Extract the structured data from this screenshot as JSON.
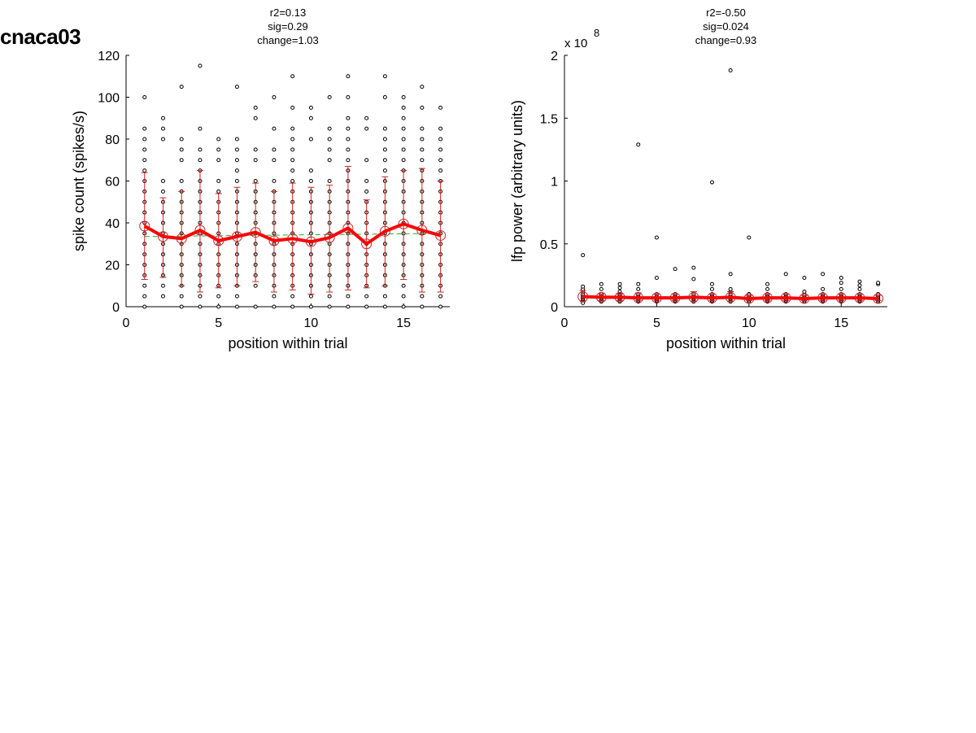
{
  "figure": {
    "title": "cnaca03"
  },
  "chart_data": [
    {
      "type": "scatter",
      "title_lines": [
        "r2=0.13",
        "sig=0.29",
        "change=1.03"
      ],
      "xlabel": "position within trial",
      "ylabel": "spike count (spikes/s)",
      "xlim": [
        0,
        17.5
      ],
      "ylim": [
        0,
        120
      ],
      "x_ticks": [
        0,
        5,
        10,
        15
      ],
      "x_tick_labels": [
        "0",
        "5",
        "10",
        "15"
      ],
      "y_ticks": [
        0,
        20,
        40,
        60,
        80,
        100,
        120
      ],
      "y_tick_labels": [
        "0",
        "20",
        "40",
        "60",
        "80",
        "100",
        "120"
      ],
      "exponent_label": "",
      "grid": false,
      "colors": {
        "points": "#000000",
        "mean": "#ff0000",
        "errorbar": "#cc2222",
        "mean_marker": "#cc2222",
        "fit": "#22aa22"
      },
      "points": [
        {
          "x": 1,
          "y": [
            0,
            5,
            10,
            15,
            20,
            25,
            30,
            35,
            40,
            45,
            50,
            55,
            60,
            65,
            70,
            75,
            80,
            85,
            100
          ]
        },
        {
          "x": 2,
          "y": [
            5,
            10,
            15,
            20,
            25,
            30,
            35,
            40,
            45,
            50,
            55,
            60,
            80,
            85,
            90
          ]
        },
        {
          "x": 3,
          "y": [
            0,
            5,
            10,
            15,
            20,
            25,
            30,
            35,
            40,
            45,
            50,
            55,
            60,
            70,
            75,
            80,
            105
          ]
        },
        {
          "x": 4,
          "y": [
            0,
            5,
            10,
            15,
            20,
            25,
            30,
            35,
            40,
            45,
            50,
            55,
            60,
            65,
            70,
            75,
            85,
            115
          ]
        },
        {
          "x": 5,
          "y": [
            0,
            5,
            10,
            15,
            20,
            25,
            30,
            35,
            40,
            45,
            50,
            55,
            60,
            70,
            75,
            80
          ]
        },
        {
          "x": 6,
          "y": [
            0,
            5,
            10,
            15,
            20,
            25,
            30,
            35,
            40,
            45,
            50,
            55,
            60,
            65,
            70,
            75,
            80,
            105
          ]
        },
        {
          "x": 7,
          "y": [
            0,
            10,
            15,
            20,
            25,
            30,
            35,
            40,
            45,
            50,
            55,
            60,
            70,
            75,
            90,
            95
          ]
        },
        {
          "x": 8,
          "y": [
            0,
            5,
            10,
            15,
            20,
            25,
            30,
            35,
            40,
            45,
            50,
            55,
            60,
            70,
            75,
            85,
            100
          ]
        },
        {
          "x": 9,
          "y": [
            0,
            5,
            10,
            15,
            20,
            25,
            30,
            35,
            40,
            45,
            50,
            55,
            60,
            65,
            70,
            75,
            80,
            85,
            95,
            110
          ]
        },
        {
          "x": 10,
          "y": [
            0,
            5,
            10,
            15,
            20,
            25,
            30,
            35,
            40,
            45,
            50,
            55,
            60,
            65,
            80,
            90,
            95
          ]
        },
        {
          "x": 11,
          "y": [
            0,
            5,
            10,
            15,
            20,
            25,
            30,
            35,
            40,
            45,
            50,
            55,
            60,
            70,
            75,
            80,
            85,
            100
          ]
        },
        {
          "x": 12,
          "y": [
            0,
            5,
            10,
            15,
            20,
            25,
            30,
            35,
            40,
            45,
            50,
            55,
            60,
            65,
            70,
            75,
            80,
            85,
            90,
            100,
            110
          ]
        },
        {
          "x": 13,
          "y": [
            0,
            5,
            10,
            15,
            20,
            25,
            30,
            35,
            40,
            45,
            50,
            55,
            60,
            70,
            85,
            90
          ]
        },
        {
          "x": 14,
          "y": [
            0,
            5,
            10,
            15,
            20,
            25,
            30,
            35,
            40,
            45,
            50,
            55,
            60,
            65,
            70,
            75,
            80,
            85,
            100,
            110
          ]
        },
        {
          "x": 15,
          "y": [
            0,
            5,
            10,
            15,
            20,
            25,
            30,
            35,
            40,
            45,
            50,
            55,
            60,
            65,
            70,
            75,
            80,
            85,
            90,
            95,
            100
          ]
        },
        {
          "x": 16,
          "y": [
            0,
            5,
            10,
            15,
            20,
            25,
            30,
            35,
            40,
            45,
            50,
            55,
            60,
            65,
            70,
            75,
            80,
            85,
            95,
            105
          ]
        },
        {
          "x": 17,
          "y": [
            0,
            5,
            10,
            15,
            20,
            25,
            30,
            35,
            40,
            45,
            50,
            55,
            60,
            65,
            70,
            75,
            80,
            85,
            95
          ]
        }
      ],
      "mean": {
        "x": [
          1,
          2,
          3,
          4,
          5,
          6,
          7,
          8,
          9,
          10,
          11,
          12,
          13,
          14,
          15,
          16,
          17
        ],
        "y": [
          38.5,
          33.5,
          32.5,
          36.5,
          31.5,
          33.5,
          35.5,
          31.5,
          32.5,
          31,
          33,
          37.5,
          30,
          36,
          39.5,
          36.5,
          34
        ],
        "err_low": [
          13,
          14,
          10,
          7,
          9,
          10,
          12,
          7,
          8,
          6,
          7,
          8,
          9,
          10,
          13,
          7,
          7
        ],
        "err_high": [
          64,
          52,
          55,
          65,
          54,
          57,
          59,
          55,
          59,
          57,
          58,
          67,
          51,
          62,
          65,
          66,
          60
        ]
      },
      "fit_line": {
        "x": [
          1,
          17
        ],
        "y": [
          33.5,
          35
        ]
      }
    },
    {
      "type": "scatter",
      "title_lines": [
        "r2=-0.50",
        "sig=0.024",
        "change=0.93"
      ],
      "xlabel": "position within trial",
      "ylabel": "lfp power (arbitrary units)",
      "xlim": [
        0,
        17.5
      ],
      "ylim": [
        0,
        2
      ],
      "x_ticks": [
        0,
        5,
        10,
        15
      ],
      "x_tick_labels": [
        "0",
        "5",
        "10",
        "15"
      ],
      "y_ticks": [
        0,
        0.5,
        1,
        1.5,
        2
      ],
      "y_tick_labels": [
        "0",
        "0.5",
        "1",
        "1.5",
        "2"
      ],
      "exponent_label": "x 10",
      "exponent_power": "8",
      "grid": false,
      "colors": {
        "points": "#000000",
        "mean": "#ff0000",
        "errorbar": "#cc2222",
        "mean_marker": "#cc2222",
        "fit": "#22aa22"
      },
      "points": [
        {
          "x": 1,
          "y": [
            0.03,
            0.05,
            0.06,
            0.07,
            0.08,
            0.09,
            0.1,
            0.12,
            0.14,
            0.16,
            0.41
          ]
        },
        {
          "x": 2,
          "y": [
            0.04,
            0.05,
            0.06,
            0.07,
            0.08,
            0.09,
            0.1,
            0.14,
            0.18
          ]
        },
        {
          "x": 3,
          "y": [
            0.04,
            0.05,
            0.06,
            0.07,
            0.08,
            0.09,
            0.1,
            0.12,
            0.15,
            0.18
          ]
        },
        {
          "x": 4,
          "y": [
            0.04,
            0.05,
            0.06,
            0.07,
            0.08,
            0.09,
            0.1,
            0.14,
            0.18,
            1.29
          ]
        },
        {
          "x": 5,
          "y": [
            0.04,
            0.05,
            0.06,
            0.07,
            0.08,
            0.1,
            0.23,
            0.55
          ]
        },
        {
          "x": 6,
          "y": [
            0.04,
            0.05,
            0.06,
            0.07,
            0.08,
            0.09,
            0.1,
            0.3
          ]
        },
        {
          "x": 7,
          "y": [
            0.04,
            0.05,
            0.06,
            0.07,
            0.08,
            0.09,
            0.1,
            0.22,
            0.31
          ]
        },
        {
          "x": 8,
          "y": [
            0.04,
            0.05,
            0.06,
            0.07,
            0.08,
            0.09,
            0.1,
            0.14,
            0.18,
            0.99
          ]
        },
        {
          "x": 9,
          "y": [
            0.04,
            0.05,
            0.06,
            0.07,
            0.08,
            0.09,
            0.1,
            0.12,
            0.14,
            0.26,
            1.88
          ]
        },
        {
          "x": 10,
          "y": [
            0.04,
            0.05,
            0.06,
            0.07,
            0.08,
            0.09,
            0.1,
            0.55
          ]
        },
        {
          "x": 11,
          "y": [
            0.04,
            0.05,
            0.06,
            0.07,
            0.08,
            0.09,
            0.1,
            0.14,
            0.18
          ]
        },
        {
          "x": 12,
          "y": [
            0.04,
            0.05,
            0.06,
            0.07,
            0.08,
            0.09,
            0.1,
            0.26
          ]
        },
        {
          "x": 13,
          "y": [
            0.04,
            0.05,
            0.06,
            0.07,
            0.08,
            0.09,
            0.1,
            0.12,
            0.23
          ]
        },
        {
          "x": 14,
          "y": [
            0.04,
            0.05,
            0.06,
            0.07,
            0.08,
            0.09,
            0.1,
            0.14,
            0.26
          ]
        },
        {
          "x": 15,
          "y": [
            0.04,
            0.05,
            0.06,
            0.07,
            0.08,
            0.09,
            0.1,
            0.14,
            0.19,
            0.23
          ]
        },
        {
          "x": 16,
          "y": [
            0.04,
            0.05,
            0.06,
            0.07,
            0.08,
            0.09,
            0.1,
            0.14,
            0.17,
            0.2
          ]
        },
        {
          "x": 17,
          "y": [
            0.04,
            0.05,
            0.06,
            0.07,
            0.08,
            0.09,
            0.1,
            0.18,
            0.19
          ]
        }
      ],
      "mean": {
        "x": [
          1,
          2,
          3,
          4,
          5,
          6,
          7,
          8,
          9,
          10,
          11,
          12,
          13,
          14,
          15,
          16,
          17
        ],
        "y": [
          0.08,
          0.075,
          0.075,
          0.07,
          0.07,
          0.07,
          0.075,
          0.07,
          0.075,
          0.065,
          0.07,
          0.07,
          0.065,
          0.07,
          0.07,
          0.07,
          0.065
        ],
        "err_low": [
          0.04,
          0.05,
          0.05,
          0.05,
          0.05,
          0.05,
          0.04,
          0.05,
          0.04,
          0.05,
          0.05,
          0.05,
          0.05,
          0.05,
          0.05,
          0.05,
          0.05
        ],
        "err_high": [
          0.13,
          0.1,
          0.1,
          0.11,
          0.1,
          0.1,
          0.12,
          0.1,
          0.12,
          0.09,
          0.1,
          0.1,
          0.09,
          0.1,
          0.1,
          0.1,
          0.09
        ]
      },
      "fit_line": {
        "x": [
          1,
          17
        ],
        "y": [
          0.075,
          0.068
        ]
      }
    }
  ]
}
